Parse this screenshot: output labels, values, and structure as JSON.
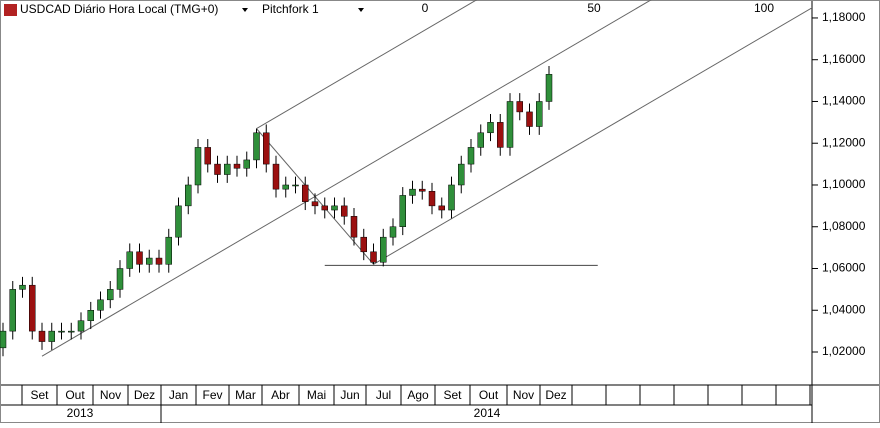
{
  "chart_data": {
    "type": "candlestick",
    "title": "USDCAD Diário Hora Local (TMG+0)",
    "indicator": "Pitchfork 1",
    "pitchfork_levels": [
      0,
      50,
      100
    ],
    "open": [
      1.022,
      1.03,
      1.05,
      1.052,
      1.03,
      1.025,
      1.03,
      1.03,
      1.03,
      1.035,
      1.04,
      1.045,
      1.05,
      1.06,
      1.068,
      1.062,
      1.065,
      1.062,
      1.075,
      1.09,
      1.1,
      1.118,
      1.11,
      1.105,
      1.11,
      1.108,
      1.112,
      1.125,
      1.11,
      1.098,
      1.1,
      1.1,
      1.092,
      1.09,
      1.088,
      1.09,
      1.085,
      1.075,
      1.068,
      1.063,
      1.075,
      1.08,
      1.095,
      1.098,
      1.097,
      1.09,
      1.088,
      1.1,
      1.11,
      1.118,
      1.125,
      1.13,
      1.118,
      1.14,
      1.135,
      1.128,
      1.14
    ],
    "high": [
      1.034,
      1.054,
      1.056,
      1.056,
      1.034,
      1.034,
      1.034,
      1.034,
      1.039,
      1.044,
      1.049,
      1.054,
      1.064,
      1.072,
      1.072,
      1.069,
      1.069,
      1.079,
      1.094,
      1.104,
      1.122,
      1.122,
      1.114,
      1.114,
      1.114,
      1.116,
      1.127,
      1.129,
      1.114,
      1.104,
      1.104,
      1.104,
      1.096,
      1.094,
      1.094,
      1.094,
      1.089,
      1.079,
      1.072,
      1.079,
      1.084,
      1.099,
      1.102,
      1.102,
      1.101,
      1.094,
      1.104,
      1.114,
      1.122,
      1.129,
      1.134,
      1.134,
      1.144,
      1.144,
      1.139,
      1.144,
      1.157
    ],
    "low": [
      1.018,
      1.026,
      1.046,
      1.026,
      1.021,
      1.021,
      1.026,
      1.026,
      1.026,
      1.031,
      1.036,
      1.041,
      1.046,
      1.056,
      1.058,
      1.058,
      1.058,
      1.058,
      1.071,
      1.086,
      1.096,
      1.106,
      1.101,
      1.101,
      1.104,
      1.104,
      1.108,
      1.106,
      1.094,
      1.094,
      1.096,
      1.088,
      1.086,
      1.084,
      1.084,
      1.081,
      1.071,
      1.064,
      1.062,
      1.061,
      1.071,
      1.076,
      1.091,
      1.093,
      1.086,
      1.084,
      1.084,
      1.096,
      1.106,
      1.114,
      1.121,
      1.114,
      1.114,
      1.131,
      1.124,
      1.124,
      1.136
    ],
    "close": [
      1.03,
      1.05,
      1.052,
      1.03,
      1.025,
      1.03,
      1.03,
      1.03,
      1.035,
      1.04,
      1.045,
      1.05,
      1.06,
      1.068,
      1.062,
      1.065,
      1.062,
      1.075,
      1.09,
      1.1,
      1.118,
      1.11,
      1.105,
      1.11,
      1.108,
      1.112,
      1.125,
      1.11,
      1.098,
      1.1,
      1.1,
      1.092,
      1.09,
      1.088,
      1.09,
      1.085,
      1.075,
      1.068,
      1.063,
      1.075,
      1.08,
      1.095,
      1.098,
      1.097,
      1.09,
      1.088,
      1.1,
      1.11,
      1.118,
      1.125,
      1.13,
      1.118,
      1.14,
      1.135,
      1.128,
      1.14,
      1.153
    ],
    "up_color": "#2f8f3a",
    "down_color": "#9b1010",
    "pitchfork": [
      {
        "index": 4,
        "price": 1.018
      },
      {
        "index": 26,
        "price": 1.127
      },
      {
        "index": 38,
        "price": 1.062
      }
    ],
    "hline": {
      "price": 1.0615,
      "from": 33,
      "to": 61
    },
    "ylim": [
      1.0042,
      1.1886
    ],
    "yticks": [
      {
        "value": 1.02,
        "label": "1,02000"
      },
      {
        "value": 1.04,
        "label": "1,04000"
      },
      {
        "value": 1.06,
        "label": "1,06000"
      },
      {
        "value": 1.08,
        "label": "1,08000"
      },
      {
        "value": 1.1,
        "label": "1,10000"
      },
      {
        "value": 1.12,
        "label": "1,12000"
      },
      {
        "value": 1.14,
        "label": "1,14000"
      },
      {
        "value": 1.16,
        "label": "1,16000"
      },
      {
        "value": 1.18,
        "label": "1,18000"
      }
    ],
    "months": [
      "Set",
      "Out",
      "Nov",
      "Dez",
      "Jan",
      "Fev",
      "Mar",
      "Abr",
      "Mai",
      "Jun",
      "Jul",
      "Ago",
      "Set",
      "Out",
      "Nov",
      "Dez"
    ],
    "years": [
      "2013",
      "2014"
    ]
  }
}
